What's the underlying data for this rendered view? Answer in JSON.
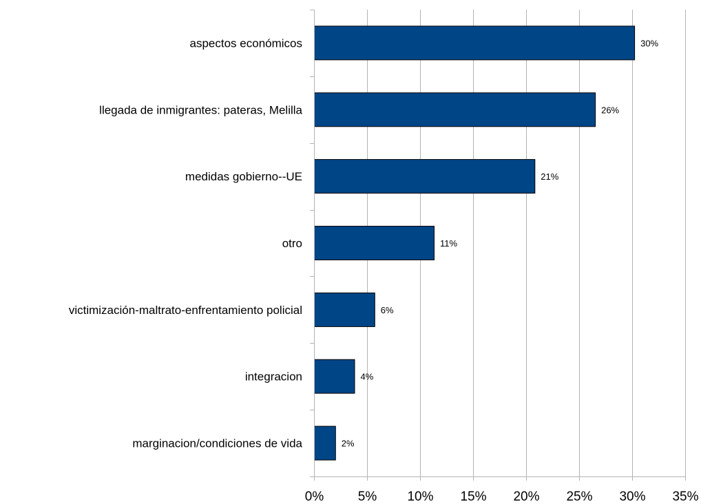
{
  "chart_data": {
    "type": "bar",
    "orientation": "horizontal",
    "title": "",
    "xlabel": "",
    "ylabel": "",
    "categories": [
      "aspectos económicos",
      "llegada de inmigrantes: pateras, Melilla",
      "medidas gobierno--UE",
      "otro",
      "victimización-maltrato-enfrentamiento policial",
      "integracion",
      "marginacion/condiciones de vida"
    ],
    "values": [
      30.2,
      26.5,
      20.8,
      11.3,
      5.7,
      3.8,
      2.0
    ],
    "data_labels": [
      "30%",
      "26%",
      "21%",
      "11%",
      "6%",
      "4%",
      "2%"
    ],
    "xlim": [
      0,
      35
    ],
    "x_ticks": [
      0,
      5,
      10,
      15,
      20,
      25,
      30,
      35
    ],
    "x_tick_labels": [
      "0%",
      "5%",
      "10%",
      "15%",
      "20%",
      "25%",
      "30%",
      "35%"
    ],
    "grid": "vertical",
    "legend": "none",
    "bar_color": "#004586",
    "grid_color": "#b3b3b3"
  }
}
